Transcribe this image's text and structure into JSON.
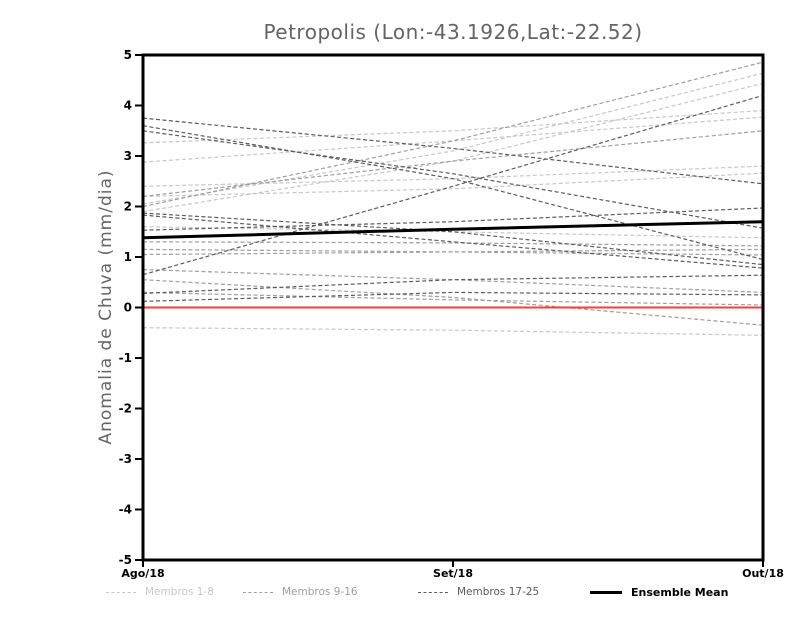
{
  "chart_data": {
    "type": "line",
    "title": "Petropolis (Lon:-43.1926,Lat:-22.52)",
    "ylabel": "Anomalia de Chuva (mm/dia)",
    "xlabel": "",
    "x_categories": [
      "Ago/18",
      "Set/18",
      "Out/18"
    ],
    "ylim": [
      -5,
      5
    ],
    "y_ticks": [
      5,
      4,
      3,
      2,
      1,
      0,
      -1,
      -2,
      -3,
      -4,
      -5
    ],
    "grid": false,
    "frame_color": "#000000",
    "background_color": "#ffffff",
    "zero_line": {
      "value": 0,
      "color": "#fa3c3c"
    },
    "group_colors": {
      "1-8": "#c8c8c8",
      "9-16": "#9f9f9f",
      "17-25": "#5c5c5c",
      "mean": "#000000"
    },
    "legend": [
      {
        "label": "Membros 1-8",
        "color": "#c8c8c8",
        "style": "dashed"
      },
      {
        "label": "Membros 9-16",
        "color": "#9f9f9f",
        "style": "dashed"
      },
      {
        "label": "Membros 17-25",
        "color": "#5c5c5c",
        "style": "dashed"
      },
      {
        "label": "Ensemble Mean",
        "color": "#000000",
        "style": "solid-thick"
      }
    ],
    "series": [
      {
        "name": "member-1",
        "group": "1-8",
        "values": [
          3.26,
          3.5,
          3.9
        ]
      },
      {
        "name": "member-2",
        "group": "1-8",
        "values": [
          2.88,
          3.3,
          3.77
        ]
      },
      {
        "name": "member-3",
        "group": "1-8",
        "values": [
          2.05,
          3.1,
          4.64
        ]
      },
      {
        "name": "member-4",
        "group": "1-8",
        "values": [
          1.9,
          2.9,
          4.44
        ]
      },
      {
        "name": "member-5",
        "group": "1-8",
        "values": [
          2.4,
          2.55,
          2.8
        ]
      },
      {
        "name": "member-6",
        "group": "1-8",
        "values": [
          2.2,
          2.35,
          2.66
        ]
      },
      {
        "name": "member-7",
        "group": "1-8",
        "values": [
          1.6,
          1.5,
          1.38
        ]
      },
      {
        "name": "member-8",
        "group": "1-8",
        "values": [
          -0.4,
          -0.45,
          -0.55
        ]
      },
      {
        "name": "member-9",
        "group": "9-16",
        "values": [
          2.0,
          3.3,
          4.86
        ]
      },
      {
        "name": "member-10",
        "group": "9-16",
        "values": [
          2.2,
          2.9,
          3.5
        ]
      },
      {
        "name": "member-11",
        "group": "9-16",
        "values": [
          1.3,
          1.28,
          1.22
        ]
      },
      {
        "name": "member-12",
        "group": "9-16",
        "values": [
          1.15,
          1.1,
          1.04
        ]
      },
      {
        "name": "member-13",
        "group": "9-16",
        "values": [
          1.05,
          1.1,
          1.15
        ]
      },
      {
        "name": "member-14",
        "group": "9-16",
        "values": [
          0.75,
          0.55,
          0.3
        ]
      },
      {
        "name": "member-15",
        "group": "9-16",
        "values": [
          0.55,
          0.2,
          -0.35
        ]
      },
      {
        "name": "member-16",
        "group": "9-16",
        "values": [
          0.3,
          0.15,
          0.05
        ]
      },
      {
        "name": "member-17",
        "group": "17-25",
        "values": [
          3.75,
          3.15,
          2.45
        ]
      },
      {
        "name": "member-18",
        "group": "17-25",
        "values": [
          3.6,
          2.55,
          0.95
        ]
      },
      {
        "name": "member-19",
        "group": "17-25",
        "values": [
          3.5,
          2.65,
          1.57
        ]
      },
      {
        "name": "member-20",
        "group": "17-25",
        "values": [
          0.65,
          2.4,
          4.2
        ]
      },
      {
        "name": "member-21",
        "group": "17-25",
        "values": [
          1.53,
          1.7,
          1.97
        ]
      },
      {
        "name": "member-22",
        "group": "17-25",
        "values": [
          1.87,
          1.5,
          0.85
        ]
      },
      {
        "name": "member-23",
        "group": "17-25",
        "values": [
          1.83,
          1.3,
          0.78
        ]
      },
      {
        "name": "member-24",
        "group": "17-25",
        "values": [
          0.28,
          0.55,
          0.64
        ]
      },
      {
        "name": "member-25",
        "group": "17-25",
        "values": [
          0.12,
          0.3,
          0.25
        ]
      },
      {
        "name": "ensemble-mean",
        "group": "mean",
        "values": [
          1.38,
          1.55,
          1.7
        ]
      }
    ]
  }
}
